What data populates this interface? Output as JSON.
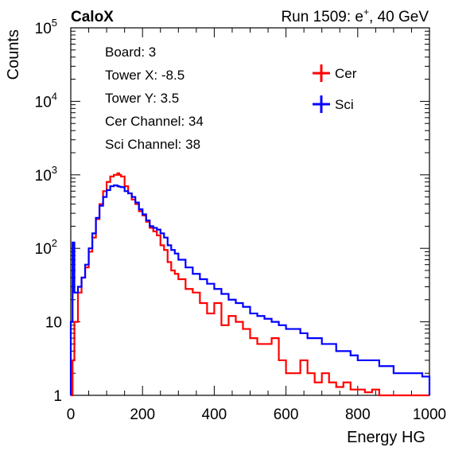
{
  "header": {
    "experiment": "CaloX",
    "run_prefix": "Run 1509: e",
    "run_sup": "+",
    "run_suffix": ", 40 GeV"
  },
  "info_box": {
    "lines": [
      "Board: 3",
      "Tower X: -8.5",
      "Tower Y: 3.5",
      "Cer Channel: 34",
      "Sci Channel: 38"
    ]
  },
  "chart_data": {
    "type": "line",
    "xlabel": "Energy HG",
    "ylabel": "Counts",
    "xlim": [
      0,
      1000
    ],
    "ylim": [
      1,
      100000
    ],
    "yscale": "log",
    "x_ticks": [
      "0",
      "200",
      "400",
      "600",
      "800",
      "1000"
    ],
    "y_ticks": [
      {
        "value": 1,
        "base": "1",
        "exp": ""
      },
      {
        "value": 10,
        "base": "10",
        "exp": ""
      },
      {
        "value": 100,
        "base": "10",
        "exp": "2"
      },
      {
        "value": 1000,
        "base": "10",
        "exp": "3"
      },
      {
        "value": 10000,
        "base": "10",
        "exp": "4"
      },
      {
        "value": 100000,
        "base": "10",
        "exp": "5"
      }
    ],
    "legend_position": "top-right",
    "grid": false,
    "series": [
      {
        "name": "Cer",
        "color": "#ff0000",
        "x": [
          0,
          5,
          10,
          20,
          30,
          40,
          50,
          60,
          70,
          80,
          90,
          100,
          110,
          120,
          130,
          135,
          140,
          150,
          160,
          170,
          180,
          190,
          200,
          210,
          220,
          230,
          240,
          250,
          260,
          270,
          280,
          290,
          300,
          320,
          340,
          360,
          380,
          400,
          420,
          440,
          460,
          480,
          500,
          520,
          540,
          560,
          580,
          600,
          620,
          640,
          660,
          680,
          700,
          720,
          740,
          760,
          780,
          800,
          820,
          840,
          860,
          880,
          900,
          920,
          940,
          960,
          980,
          1000
        ],
        "values": [
          1,
          3,
          10,
          25,
          40,
          55,
          90,
          140,
          250,
          400,
          600,
          800,
          950,
          1000,
          1050,
          1000,
          950,
          700,
          560,
          460,
          400,
          320,
          280,
          230,
          190,
          170,
          150,
          110,
          95,
          65,
          50,
          45,
          38,
          28,
          25,
          18,
          13,
          18,
          9,
          12,
          10,
          8,
          6,
          5,
          5,
          6,
          3,
          2,
          2,
          3,
          2,
          1.5,
          2,
          1.5,
          1.3,
          1.5,
          1.2,
          1.2,
          1.1,
          1.2,
          1,
          1,
          1,
          1,
          1,
          1,
          1,
          1
        ]
      },
      {
        "name": "Sci",
        "color": "#0000ff",
        "x": [
          0,
          5,
          10,
          20,
          30,
          40,
          50,
          60,
          70,
          80,
          90,
          100,
          110,
          120,
          130,
          135,
          140,
          150,
          160,
          170,
          180,
          190,
          200,
          210,
          220,
          230,
          240,
          250,
          260,
          270,
          280,
          290,
          300,
          320,
          340,
          360,
          380,
          400,
          420,
          440,
          460,
          480,
          500,
          520,
          540,
          560,
          580,
          600,
          620,
          640,
          660,
          680,
          700,
          720,
          740,
          760,
          780,
          800,
          820,
          840,
          860,
          880,
          900,
          920,
          940,
          960,
          980,
          1000
        ],
        "values": [
          10,
          120,
          25,
          30,
          40,
          60,
          100,
          160,
          260,
          380,
          500,
          620,
          700,
          720,
          700,
          690,
          680,
          600,
          560,
          500,
          420,
          340,
          290,
          240,
          200,
          190,
          180,
          160,
          140,
          110,
          95,
          85,
          70,
          55,
          45,
          38,
          33,
          28,
          24,
          20,
          18,
          16,
          13,
          12,
          11,
          10,
          9,
          8,
          8,
          7,
          6,
          6,
          5,
          5,
          4,
          4,
          3.5,
          3,
          3,
          3,
          2.5,
          2.5,
          2,
          2,
          2,
          2,
          1.8,
          1.8
        ]
      }
    ]
  }
}
